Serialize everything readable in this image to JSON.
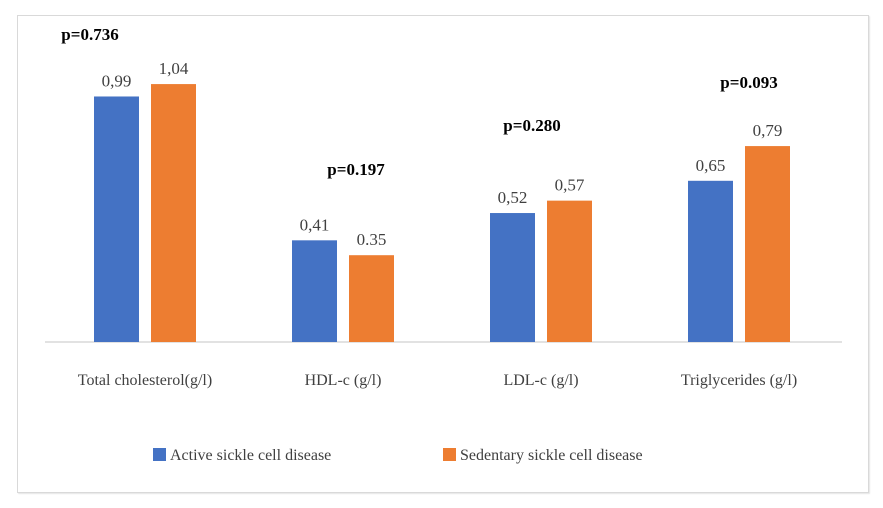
{
  "chart_data": {
    "type": "bar",
    "title": "",
    "xlabel": "",
    "ylabel": "",
    "ylim": [
      0,
      1.1
    ],
    "grid": false,
    "legend_position": "bottom",
    "categories": [
      "Total cholesterol(g/l)",
      "HDL-c (g/l)",
      "LDL-c (g/l)",
      "Triglycerides (g/l)"
    ],
    "series": [
      {
        "name": "Active sickle cell disease",
        "color": "#4472c4",
        "values": [
          0.99,
          0.41,
          0.52,
          0.65
        ],
        "labels": [
          "0,99",
          "0,41",
          "0,52",
          "0,65"
        ]
      },
      {
        "name": "Sedentary sickle cell disease",
        "color": "#ed7d31",
        "values": [
          1.04,
          0.35,
          0.57,
          0.79
        ],
        "labels": [
          "1,04",
          "0.35",
          "0,57",
          "0,79"
        ]
      }
    ],
    "annotations": [
      "p=0.736",
      "p=0.197",
      "p=0.280",
      "p=0.093"
    ]
  }
}
